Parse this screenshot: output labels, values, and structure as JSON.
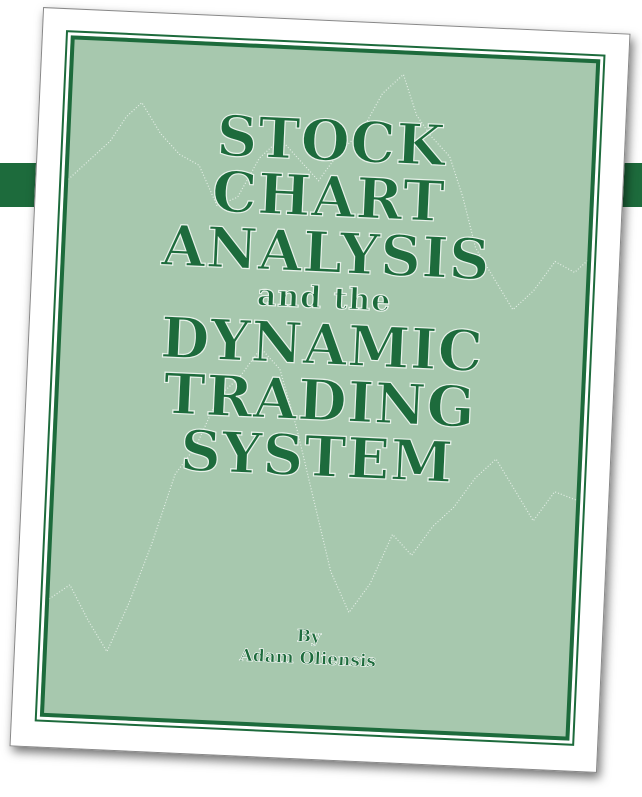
{
  "cover": {
    "title_lines": [
      "STOCK",
      "CHART",
      "ANALYSIS",
      "and the",
      "DYNAMIC",
      "TRADING",
      "SYSTEM"
    ],
    "byline": "By",
    "author": "Adam Oliensis"
  }
}
